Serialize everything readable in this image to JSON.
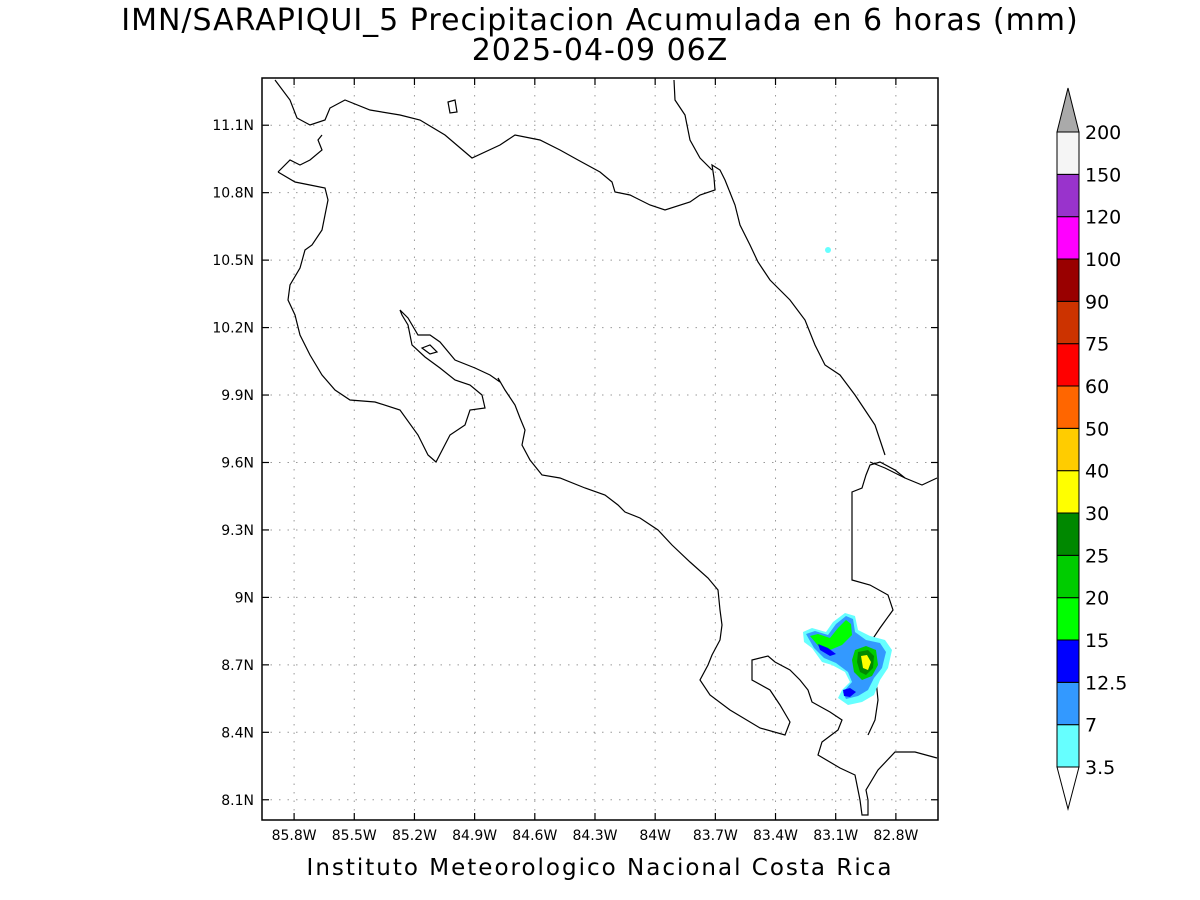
{
  "title": "IMN/SARAPIQUI_5 Precipitacion Acumulada en 6 horas (mm)",
  "subtitle": "2025-04-09 06Z",
  "footer": "Instituto Meteorologico Nacional Costa Rica",
  "lat_ticks": [
    "11.1N",
    "10.8N",
    "10.5N",
    "10.2N",
    "9.9N",
    "9.6N",
    "9.3N",
    "9N",
    "8.7N",
    "8.4N",
    "8.1N"
  ],
  "lon_ticks": [
    "85.8W",
    "85.5W",
    "85.2W",
    "84.9W",
    "84.6W",
    "84.3W",
    "84W",
    "83.7W",
    "83.4W",
    "83.1W",
    "82.8W"
  ],
  "legend": {
    "levels": [
      "3.5",
      "7",
      "12.5",
      "15",
      "20",
      "25",
      "30",
      "40",
      "50",
      "60",
      "75",
      "90",
      "100",
      "120",
      "150",
      "200"
    ],
    "colors": [
      "#66ffff",
      "#3399ff",
      "#0000ff",
      "#00ff00",
      "#00cc00",
      "#008800",
      "#ffff00",
      "#ffcc00",
      "#ff6600",
      "#ff0000",
      "#cc3300",
      "#990000",
      "#ff00ff",
      "#9933cc",
      "#f5f5f5",
      "#aaaaaa"
    ],
    "under_color": "#ffffff",
    "over_color": "#aaaaaa"
  },
  "map": {
    "lon_range": [
      85.96,
      82.59
    ],
    "lat_range": [
      8.01,
      11.31
    ],
    "grid": true
  }
}
